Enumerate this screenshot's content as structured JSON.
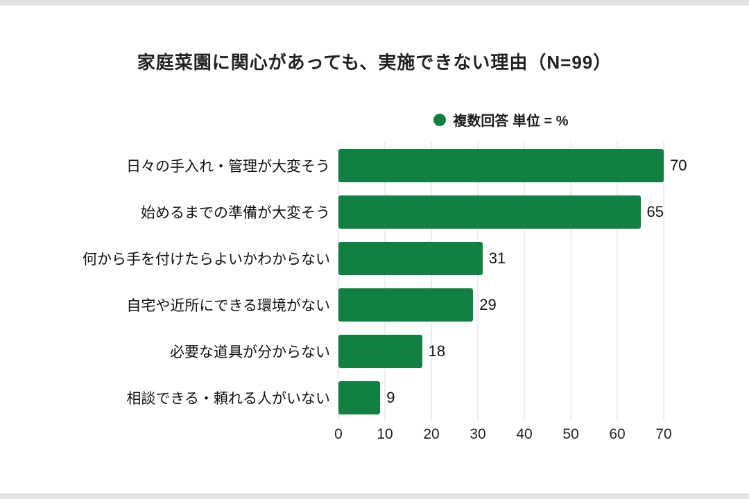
{
  "page": {
    "background": "#ffffff",
    "border_strip_color": "#e4e4e4"
  },
  "chart_data": {
    "type": "bar",
    "orientation": "horizontal",
    "title": "家庭菜園に関心があっても、実施できない理由（N=99）",
    "legend": {
      "label": "複数回答 単位 = %",
      "marker_color": "#118042",
      "position": "top-center"
    },
    "categories": [
      "日々の手入れ・管理が大変そう",
      "始めるまでの準備が大変そう",
      "何から手を付けたらよいかわからない",
      "自宅や近所にできる環境がない",
      "必要な道具が分からない",
      "相談できる・頼れる人がいない"
    ],
    "values": [
      70,
      65,
      31,
      29,
      18,
      9
    ],
    "xticks": [
      0,
      10,
      20,
      30,
      40,
      50,
      60,
      70
    ],
    "xlim": [
      0,
      70
    ],
    "bar_color": "#118042",
    "grid": true,
    "gridline_color": "#d9d9d9",
    "value_labels": true
  }
}
